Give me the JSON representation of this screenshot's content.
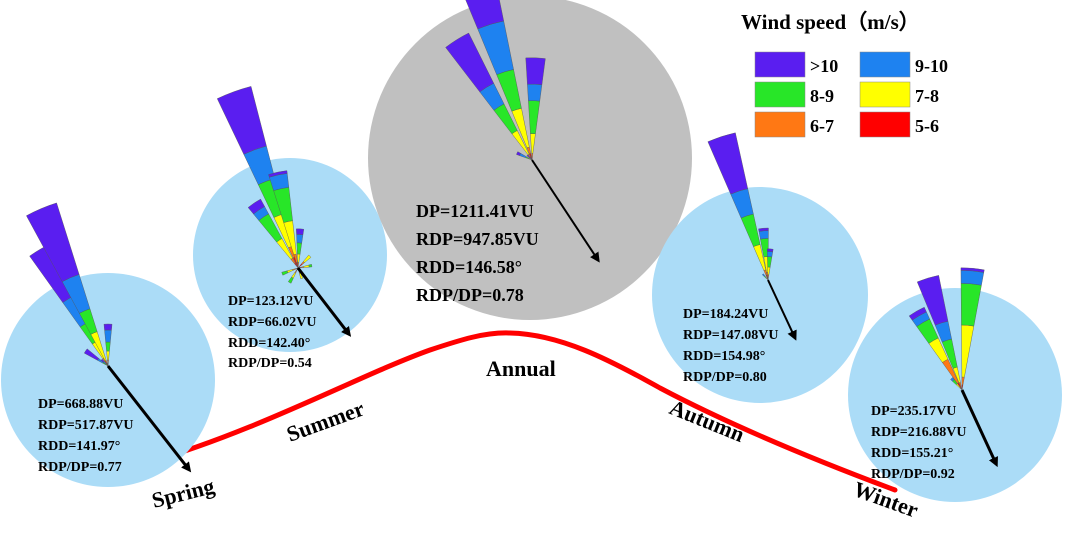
{
  "colors": {
    "season_bg": "#abdcf7",
    "annual_bg": "#c0c0c0",
    "curve": "#ff0000",
    "arrow": "#000000"
  },
  "legend": {
    "title": "Wind speed（m/s）",
    "items": [
      {
        "label": ">10",
        "color": "#5a1ef0"
      },
      {
        "label": "9-10",
        "color": "#1e82f0"
      },
      {
        "label": "8-9",
        "color": "#28e628"
      },
      {
        "label": "7-8",
        "color": "#ffff00"
      },
      {
        "label": "6-7",
        "color": "#ff7814"
      },
      {
        "label": "5-6",
        "color": "#ff0000"
      }
    ]
  },
  "panels": [
    {
      "id": "spring",
      "season": "Spring",
      "DP": "DP=668.88VU",
      "RDP": "RDP=517.87VU",
      "RDD": "RDD=141.97°",
      "RATIO": "RDP/DP=0.77",
      "rdd_deg": 141.97,
      "petals": [
        {
          "bearing": 330,
          "bands": [
            0.19,
            0.1,
            0.07,
            0.06,
            0.01,
            0.02
          ]
        },
        {
          "bearing": 337,
          "bands": [
            0.25,
            0.12,
            0.08,
            0.1,
            0.01,
            0.01
          ]
        },
        {
          "bearing": 0,
          "bands": [
            0.02,
            0.04,
            0.03,
            0.03,
            0.01,
            0.01
          ]
        },
        {
          "bearing": 304,
          "bands": [
            0.05,
            0.02,
            0.01,
            0.01,
            0,
            0
          ]
        },
        {
          "bearing": 315,
          "bands": [
            0.01,
            0.01,
            0.01,
            0,
            0,
            0
          ]
        }
      ]
    },
    {
      "id": "summer",
      "season": "Summer",
      "DP": "DP=123.12VU",
      "RDP": "RDP=66.02VU",
      "RDD": "RDD=142.40°",
      "RATIO": "RDP/DP=0.54",
      "rdd_deg": 142.4,
      "petals": [
        {
          "bearing": 340,
          "bands": [
            0.22,
            0.12,
            0.13,
            0.12,
            0.04,
            0.04
          ]
        },
        {
          "bearing": 326,
          "bands": [
            0.03,
            0.03,
            0.1,
            0.08,
            0.02,
            0.02
          ]
        },
        {
          "bearing": 348,
          "bands": [
            0.01,
            0.05,
            0.12,
            0.12,
            0.03,
            0.02
          ]
        },
        {
          "bearing": 3,
          "bands": [
            0.02,
            0.03,
            0.04,
            0.03,
            0.01,
            0.01
          ]
        },
        {
          "bearing": 45,
          "bands": [
            0,
            0,
            0,
            0.03,
            0.01,
            0.02
          ]
        },
        {
          "bearing": 80,
          "bands": [
            0,
            0,
            0.01,
            0.02,
            0.01,
            0.01
          ]
        },
        {
          "bearing": 250,
          "bands": [
            0,
            0,
            0.02,
            0.02,
            0.01,
            0.01
          ]
        },
        {
          "bearing": 210,
          "bands": [
            0,
            0,
            0.02,
            0.02,
            0.01,
            0.01
          ]
        },
        {
          "bearing": 160,
          "bands": [
            0,
            0,
            0,
            0.02,
            0.01,
            0.01
          ]
        }
      ]
    },
    {
      "id": "annual",
      "season": "Annual",
      "DP": "DP=1211.41VU",
      "RDP": "RDP=947.85VU",
      "RDD": "RDD=146.58°",
      "RATIO": "RDP/DP=0.78",
      "rdd_deg": 146.58,
      "petals": [
        {
          "bearing": 343,
          "bands": [
            0.3,
            0.15,
            0.12,
            0.12,
            0.02,
            0.02
          ]
        },
        {
          "bearing": 328,
          "bands": [
            0.17,
            0.07,
            0.09,
            0.08,
            0.01,
            0.01
          ]
        },
        {
          "bearing": 2,
          "bands": [
            0.08,
            0.05,
            0.1,
            0.06,
            0.01,
            0.01
          ]
        },
        {
          "bearing": 295,
          "bands": [
            0.01,
            0.02,
            0.01,
            0.01,
            0,
            0
          ]
        },
        {
          "bearing": 315,
          "bands": [
            0.01,
            0.01,
            0,
            0,
            0,
            0
          ]
        }
      ]
    },
    {
      "id": "autumn",
      "season": "Autumn",
      "DP": "DP=184.24VU",
      "RDP": "RDP=147.08VU",
      "RDD": "RDD=154.98°",
      "RATIO": "RDP/DP=0.80",
      "rdd_deg": 154.98,
      "petals": [
        {
          "bearing": 342,
          "bands": [
            0.22,
            0.1,
            0.12,
            0.1,
            0.02,
            0.02
          ]
        },
        {
          "bearing": 355,
          "bands": [
            0.01,
            0.03,
            0.07,
            0.06,
            0.02,
            0.01
          ]
        },
        {
          "bearing": 4,
          "bands": [
            0.01,
            0.02,
            0.04,
            0.03,
            0.01,
            0.01
          ]
        },
        {
          "bearing": 318,
          "bands": [
            0,
            0.01,
            0.01,
            0.01,
            0,
            0
          ]
        }
      ]
    },
    {
      "id": "winter",
      "season": "Winter",
      "DP": "DP=235.17VU",
      "RDP": "RDP=216.88VU",
      "RDD": "RDD=155.21°",
      "RATIO": "RDP/DP=0.92",
      "rdd_deg": 155.21,
      "petals": [
        {
          "bearing": 343,
          "bands": [
            0.18,
            0.07,
            0.11,
            0.06,
            0.02,
            0.01
          ]
        },
        {
          "bearing": 330,
          "bands": [
            0.02,
            0.03,
            0.08,
            0.09,
            0.1,
            0.03
          ]
        },
        {
          "bearing": 5,
          "bands": [
            0.01,
            0.05,
            0.16,
            0.2,
            0.03,
            0.02
          ]
        },
        {
          "bearing": 318,
          "bands": [
            0,
            0.01,
            0.02,
            0.02,
            0.01,
            0
          ]
        }
      ]
    }
  ]
}
